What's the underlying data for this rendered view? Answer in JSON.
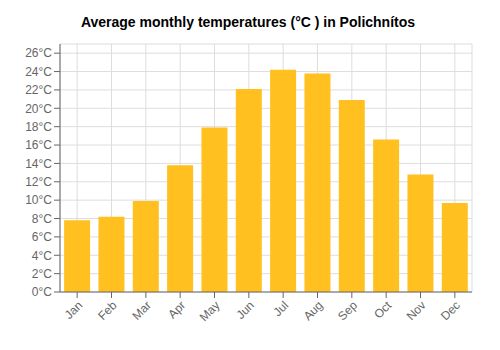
{
  "chart_data": {
    "type": "bar",
    "title": "Average monthly temperatures (°C ) in Polichnítos",
    "categories": [
      "Jan",
      "Feb",
      "Mar",
      "Apr",
      "May",
      "Jun",
      "Jul",
      "Aug",
      "Sep",
      "Oct",
      "Nov",
      "Dec"
    ],
    "values": [
      7.8,
      8.2,
      9.9,
      13.8,
      17.9,
      22.1,
      24.2,
      23.8,
      20.9,
      16.6,
      12.8,
      9.7
    ],
    "color": "#FFC020",
    "ylim": [
      0,
      27
    ],
    "yticks": [
      {
        "value": 0,
        "label": "0°C"
      },
      {
        "value": 2,
        "label": "2°C"
      },
      {
        "value": 4,
        "label": "4°C"
      },
      {
        "value": 6,
        "label": "6°C"
      },
      {
        "value": 8,
        "label": "8°C"
      },
      {
        "value": 10,
        "label": "10°C"
      },
      {
        "value": 12,
        "label": "12°C"
      },
      {
        "value": 14,
        "label": "14°C"
      },
      {
        "value": 16,
        "label": "16°C"
      },
      {
        "value": 18,
        "label": "18°C"
      },
      {
        "value": 20,
        "label": "20°C"
      },
      {
        "value": 22,
        "label": "22°C"
      },
      {
        "value": 24,
        "label": "24°C"
      },
      {
        "value": 26,
        "label": "26°C"
      }
    ],
    "grid": true
  }
}
